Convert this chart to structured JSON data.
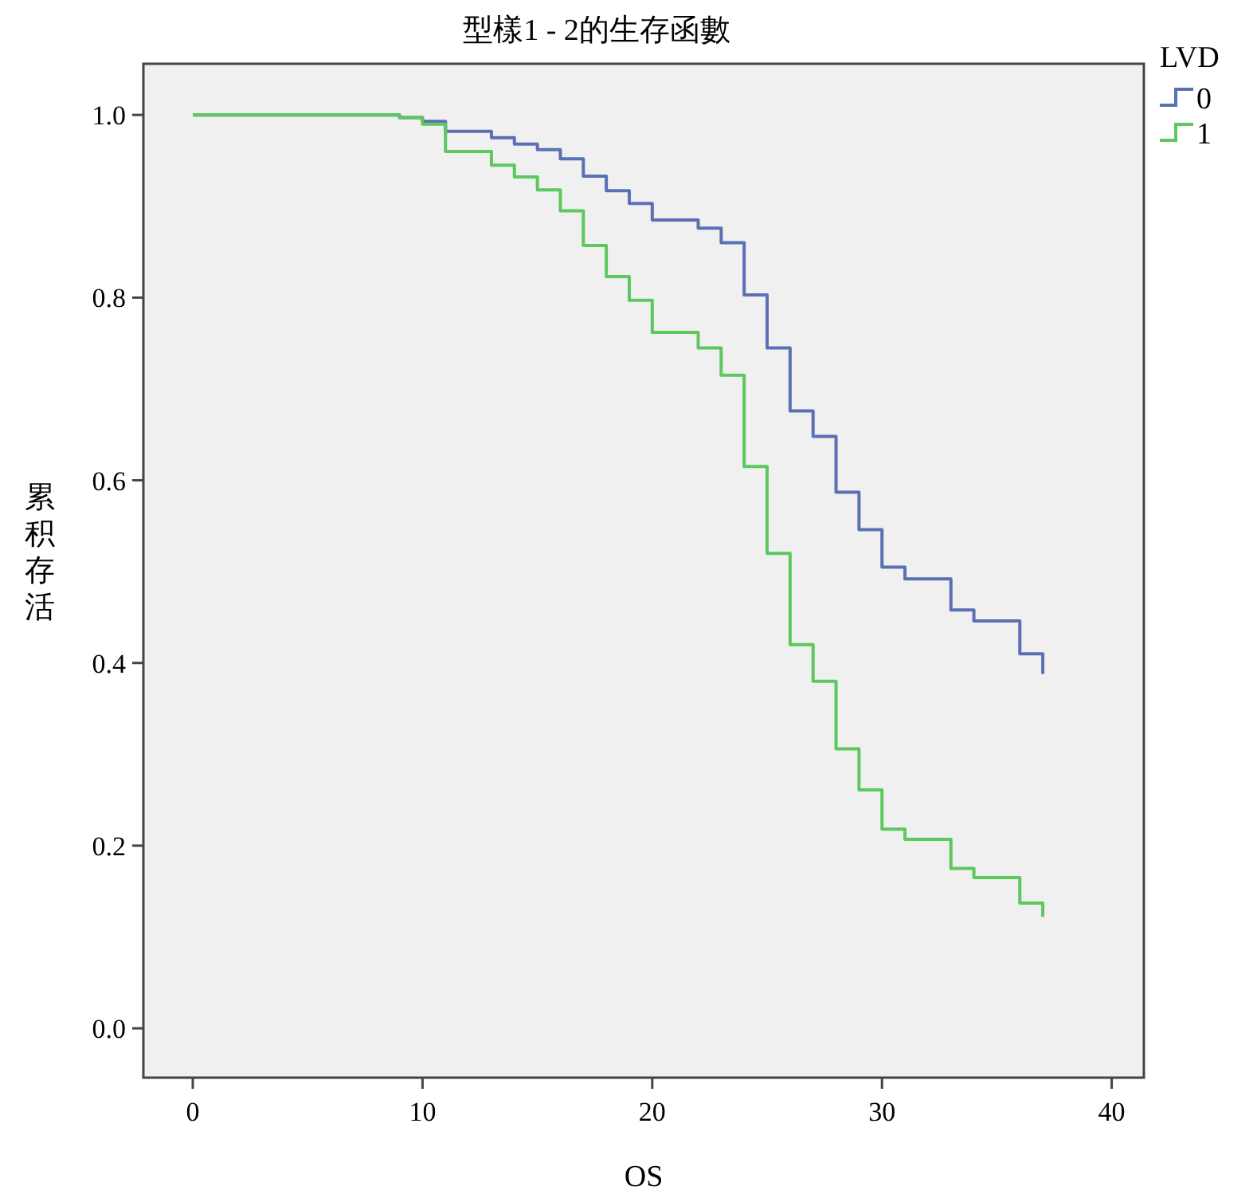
{
  "chart_data": {
    "type": "step",
    "title": "型樣1 - 2的生存函數",
    "xlabel": "OS",
    "ylabel": "累积存活",
    "legend_title": "LVD",
    "legend": "top right",
    "grid": false,
    "xlim": [
      -2.15,
      41.4
    ],
    "xticks": [
      0,
      10,
      20,
      30,
      40
    ],
    "ylim": [
      -0.054,
      1.056
    ],
    "yticks": [
      {
        "value": 0,
        "label": "0.0"
      },
      {
        "value": 0.2,
        "label": "0.2"
      },
      {
        "value": 0.4,
        "label": "0.4"
      },
      {
        "value": 0.6,
        "label": "0.6"
      },
      {
        "value": 0.8,
        "label": "0.8"
      },
      {
        "value": 1,
        "label": "1.0"
      }
    ],
    "series": [
      {
        "name": "0",
        "color": "#5b6fb5",
        "x": [
          0,
          9,
          10,
          11,
          13,
          14,
          15,
          16,
          17,
          18,
          19,
          20,
          22,
          23,
          24,
          25,
          26,
          27,
          28,
          29,
          30,
          31,
          33,
          34,
          36,
          37
        ],
        "values": [
          1.0,
          0.997,
          0.993,
          0.982,
          0.975,
          0.968,
          0.962,
          0.952,
          0.933,
          0.917,
          0.903,
          0.885,
          0.876,
          0.86,
          0.803,
          0.745,
          0.676,
          0.648,
          0.587,
          0.546,
          0.505,
          0.492,
          0.458,
          0.446,
          0.41,
          0.388
        ]
      },
      {
        "name": "1",
        "color": "#5cc85e",
        "x": [
          0,
          9,
          10,
          11,
          13,
          14,
          15,
          16,
          17,
          18,
          19,
          20,
          22,
          23,
          24,
          25,
          26,
          27,
          28,
          29,
          30,
          31,
          33,
          34,
          36,
          37
        ],
        "values": [
          1.0,
          0.997,
          0.99,
          0.96,
          0.945,
          0.932,
          0.918,
          0.895,
          0.857,
          0.823,
          0.797,
          0.762,
          0.745,
          0.715,
          0.615,
          0.52,
          0.42,
          0.38,
          0.306,
          0.261,
          0.218,
          0.207,
          0.175,
          0.165,
          0.137,
          0.122
        ]
      }
    ]
  }
}
